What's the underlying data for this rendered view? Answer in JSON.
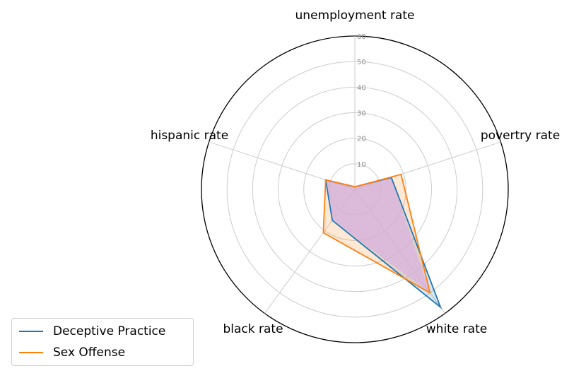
{
  "chart_data": {
    "type": "radar",
    "axes": [
      "unemployment rate",
      "povertry rate",
      "white rate",
      "black rate",
      "hispanic rate"
    ],
    "rlim": [
      0,
      60
    ],
    "r_ticks": [
      10,
      20,
      30,
      40,
      50,
      60
    ],
    "grid": true,
    "legend_position": "lower-left",
    "series": [
      {
        "name": "Deceptive Practice",
        "color": "#1f77b4",
        "values": [
          1,
          15,
          57,
          15,
          12
        ]
      },
      {
        "name": "Sex Offense",
        "color": "#ff7f0e",
        "values": [
          1,
          19,
          50,
          21,
          12
        ]
      }
    ],
    "fill_overlap_color": "#d9b3df"
  }
}
